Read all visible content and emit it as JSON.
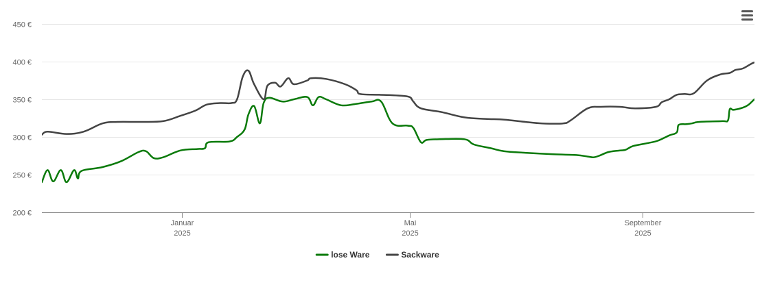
{
  "menu": {
    "icon": "hamburger-menu-icon"
  },
  "chart_data": {
    "type": "line",
    "title": "",
    "xlabel": "",
    "ylabel": "",
    "ylim": [
      200,
      450
    ],
    "xlim": [
      "2024-10-19",
      "2025-10-30"
    ],
    "grid": true,
    "legend_position": "bottom-center",
    "y_ticks": [
      {
        "value": 200,
        "label": "200 €"
      },
      {
        "value": 250,
        "label": "250 €"
      },
      {
        "value": 300,
        "label": "300 €"
      },
      {
        "value": 350,
        "label": "350 €"
      },
      {
        "value": 400,
        "label": "400 €"
      },
      {
        "value": 450,
        "label": "450 €"
      }
    ],
    "x_ticks": [
      {
        "date": "2025-01-01",
        "month": "Januar",
        "year": "2025"
      },
      {
        "date": "2025-05-01",
        "month": "Mai",
        "year": "2025"
      },
      {
        "date": "2025-09-01",
        "month": "September",
        "year": "2025"
      }
    ],
    "series": [
      {
        "name": "lose Ware",
        "color": "#0a7a0a",
        "points": [
          [
            "2024-10-19",
            240
          ],
          [
            "2024-10-22",
            256
          ],
          [
            "2024-10-25",
            241
          ],
          [
            "2024-10-29",
            256
          ],
          [
            "2024-11-01",
            240
          ],
          [
            "2024-11-05",
            256
          ],
          [
            "2024-11-07",
            245
          ],
          [
            "2024-11-09",
            255
          ],
          [
            "2024-11-20",
            260
          ],
          [
            "2024-11-30",
            268
          ],
          [
            "2024-12-09",
            280
          ],
          [
            "2024-12-13",
            281
          ],
          [
            "2024-12-17",
            272
          ],
          [
            "2024-12-22",
            273
          ],
          [
            "2024-12-31",
            282
          ],
          [
            "2025-01-09",
            284
          ],
          [
            "2025-01-13",
            285
          ],
          [
            "2025-01-15",
            293
          ],
          [
            "2025-01-26",
            294
          ],
          [
            "2025-01-30",
            300
          ],
          [
            "2025-02-03",
            310
          ],
          [
            "2025-02-05",
            330
          ],
          [
            "2025-02-08",
            341
          ],
          [
            "2025-02-11",
            318
          ],
          [
            "2025-02-13",
            345
          ],
          [
            "2025-02-16",
            352
          ],
          [
            "2025-02-23",
            347
          ],
          [
            "2025-03-01",
            350
          ],
          [
            "2025-03-08",
            353
          ],
          [
            "2025-03-11",
            342
          ],
          [
            "2025-03-14",
            353
          ],
          [
            "2025-03-18",
            350
          ],
          [
            "2025-03-26",
            342
          ],
          [
            "2025-04-03",
            344
          ],
          [
            "2025-04-11",
            347
          ],
          [
            "2025-04-16",
            347
          ],
          [
            "2025-04-22",
            318
          ],
          [
            "2025-04-30",
            315
          ],
          [
            "2025-05-03",
            312
          ],
          [
            "2025-05-07",
            293
          ],
          [
            "2025-05-10",
            296
          ],
          [
            "2025-05-17",
            297
          ],
          [
            "2025-05-30",
            297
          ],
          [
            "2025-06-04",
            290
          ],
          [
            "2025-06-13",
            285
          ],
          [
            "2025-06-20",
            281
          ],
          [
            "2025-07-01",
            279
          ],
          [
            "2025-07-16",
            277
          ],
          [
            "2025-07-28",
            276
          ],
          [
            "2025-08-03",
            274
          ],
          [
            "2025-08-06",
            273
          ],
          [
            "2025-08-09",
            275
          ],
          [
            "2025-08-14",
            280
          ],
          [
            "2025-08-20",
            282
          ],
          [
            "2025-08-23",
            283
          ],
          [
            "2025-08-27",
            288
          ],
          [
            "2025-09-04",
            292
          ],
          [
            "2025-09-09",
            295
          ],
          [
            "2025-09-15",
            302
          ],
          [
            "2025-09-19",
            306
          ],
          [
            "2025-09-20",
            316
          ],
          [
            "2025-09-24",
            317
          ],
          [
            "2025-09-27",
            318
          ],
          [
            "2025-10-01",
            320
          ],
          [
            "2025-10-13",
            321
          ],
          [
            "2025-10-16",
            322
          ],
          [
            "2025-10-17",
            337
          ],
          [
            "2025-10-19",
            336
          ],
          [
            "2025-10-24",
            339
          ],
          [
            "2025-10-27",
            343
          ],
          [
            "2025-10-30",
            350
          ],
          [
            "2025-11-02",
            355
          ],
          [
            "2025-11-10",
            355
          ]
        ]
      },
      {
        "name": "Sackware",
        "color": "#444444",
        "points": [
          [
            "2024-10-19",
            303
          ],
          [
            "2024-10-22",
            307
          ],
          [
            "2024-11-01",
            304
          ],
          [
            "2024-11-10",
            307
          ],
          [
            "2024-11-20",
            318
          ],
          [
            "2024-11-28",
            320
          ],
          [
            "2024-12-10",
            320
          ],
          [
            "2024-12-22",
            321
          ],
          [
            "2024-12-31",
            328
          ],
          [
            "2025-01-08",
            335
          ],
          [
            "2025-01-14",
            343
          ],
          [
            "2025-01-21",
            345
          ],
          [
            "2025-01-27",
            345
          ],
          [
            "2025-01-30",
            350
          ],
          [
            "2025-02-02",
            380
          ],
          [
            "2025-02-05",
            388
          ],
          [
            "2025-02-08",
            370
          ],
          [
            "2025-02-13",
            350
          ],
          [
            "2025-02-15",
            368
          ],
          [
            "2025-02-19",
            372
          ],
          [
            "2025-02-22",
            367
          ],
          [
            "2025-02-26",
            378
          ],
          [
            "2025-03-01",
            370
          ],
          [
            "2025-03-08",
            375
          ],
          [
            "2025-03-10",
            378
          ],
          [
            "2025-03-18",
            377
          ],
          [
            "2025-03-28",
            370
          ],
          [
            "2025-04-03",
            362
          ],
          [
            "2025-04-05",
            357
          ],
          [
            "2025-04-15",
            356
          ],
          [
            "2025-04-25",
            355
          ],
          [
            "2025-05-01",
            353
          ],
          [
            "2025-05-03",
            347
          ],
          [
            "2025-05-07",
            338
          ],
          [
            "2025-05-18",
            333
          ],
          [
            "2025-05-30",
            326
          ],
          [
            "2025-06-10",
            324
          ],
          [
            "2025-06-20",
            323
          ],
          [
            "2025-07-01",
            320
          ],
          [
            "2025-07-10",
            318
          ],
          [
            "2025-07-21",
            318
          ],
          [
            "2025-07-25",
            322
          ],
          [
            "2025-08-03",
            338
          ],
          [
            "2025-08-10",
            340
          ],
          [
            "2025-08-20",
            340
          ],
          [
            "2025-08-28",
            338
          ],
          [
            "2025-09-08",
            340
          ],
          [
            "2025-09-11",
            346
          ],
          [
            "2025-09-15",
            350
          ],
          [
            "2025-09-19",
            356
          ],
          [
            "2025-09-23",
            357
          ],
          [
            "2025-09-28",
            358
          ],
          [
            "2025-10-05",
            375
          ],
          [
            "2025-10-12",
            383
          ],
          [
            "2025-10-17",
            385
          ],
          [
            "2025-10-20",
            389
          ],
          [
            "2025-10-24",
            391
          ],
          [
            "2025-10-30",
            399
          ],
          [
            "2025-11-02",
            397
          ],
          [
            "2025-11-06",
            397
          ],
          [
            "2025-11-10",
            400
          ],
          [
            "2025-11-18",
            400
          ]
        ]
      }
    ]
  }
}
